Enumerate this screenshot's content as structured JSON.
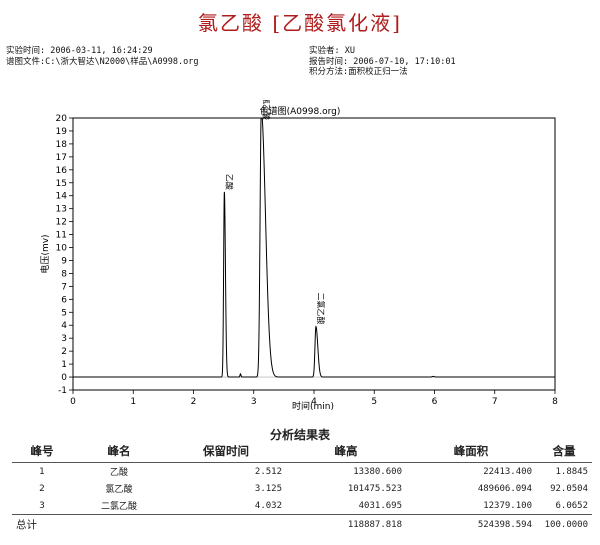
{
  "title": "氯乙酸  [乙酸氯化液]",
  "meta_left": {
    "line1": "实验时间: 2006-03-11, 16:24:29",
    "line2": "谱图文件:C:\\浙大智达\\N2000\\样品\\A0998.org"
  },
  "meta_right": {
    "line1": "实验者: XU",
    "line2": "报告时间: 2006-07-10, 17:10:01",
    "line3": "积分方法:面积校正归一法"
  },
  "chart_data": {
    "type": "line",
    "title": "色谱图(A0998.org)",
    "xlabel": "时间(min)",
    "ylabel": "电压(mv)",
    "xlim": [
      0,
      8
    ],
    "ylim": [
      -1,
      20
    ],
    "xticks": [
      0,
      1,
      2,
      3,
      4,
      5,
      6,
      7,
      8
    ],
    "yticks": [
      -1,
      0,
      1,
      2,
      3,
      4,
      5,
      6,
      7,
      8,
      9,
      10,
      11,
      12,
      13,
      14,
      15,
      16,
      17,
      18,
      19,
      20
    ],
    "baseline": 0,
    "peaks": [
      {
        "label": "乙酸",
        "rt": 2.512,
        "height": 14.3,
        "sigma": 0.012,
        "tail": 0.006
      },
      {
        "label": "氯乙酸",
        "rt": 3.125,
        "height": 20.5,
        "sigma": 0.02,
        "tail": 0.05
      },
      {
        "label": "二氯乙酸",
        "rt": 4.032,
        "height": 3.9,
        "sigma": 0.016,
        "tail": 0.015
      }
    ],
    "minor_peaks": [
      {
        "rt": 2.78,
        "height": 0.25,
        "sigma": 0.008
      },
      {
        "rt": 5.98,
        "height": 0.05,
        "sigma": 0.02
      }
    ]
  },
  "results_table": {
    "title": "分析结果表",
    "headers": [
      "峰号",
      "峰名",
      "保留时间",
      "峰高",
      "峰面积",
      "含量"
    ],
    "rows": [
      [
        "1",
        "乙酸",
        "2.512",
        "13380.600",
        "22413.400",
        "1.8845"
      ],
      [
        "2",
        "氯乙酸",
        "3.125",
        "101475.523",
        "489606.094",
        "92.0504"
      ],
      [
        "3",
        "二氯乙酸",
        "4.032",
        "4031.695",
        "12379.100",
        "6.0652"
      ]
    ],
    "total": {
      "label": "总计",
      "height": "118887.818",
      "area": "524398.594",
      "content": "100.0000"
    }
  }
}
